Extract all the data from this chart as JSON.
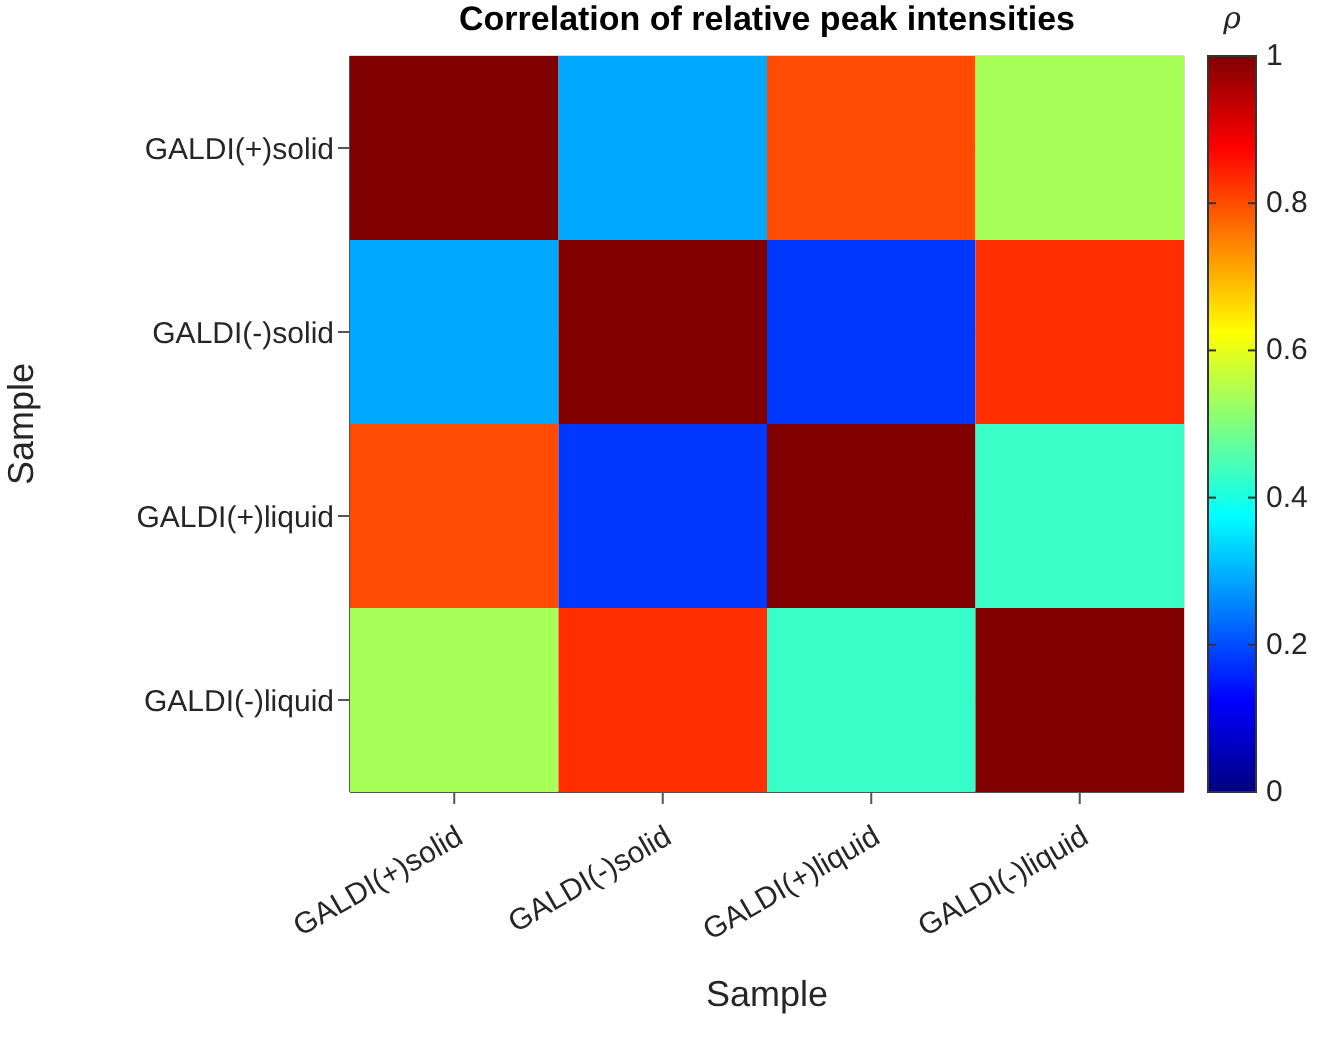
{
  "chart_data": {
    "type": "heatmap",
    "title": "Correlation of relative peak intensities",
    "xlabel": "Sample",
    "ylabel": "Sample",
    "clabel": "ρ",
    "categories": [
      "GALDI(+)solid",
      "GALDI(-)solid",
      "GALDI(+)liquid",
      "GALDI(-)liquid"
    ],
    "y_categories": [
      "GALDI(+)solid",
      "GALDI(-)solid",
      "GALDI(+)liquid",
      "GALDI(-)liquid"
    ],
    "cells": [
      [
        1,
        0.29,
        0.8,
        0.54
      ],
      [
        0.29,
        1,
        0.18,
        0.83
      ],
      [
        0.8,
        0.18,
        1,
        0.43
      ],
      [
        0.54,
        0.83,
        0.43,
        1
      ]
    ],
    "clim": [
      0,
      1
    ],
    "cticks": [
      0,
      0.2,
      0.4,
      0.6,
      0.8,
      1
    ],
    "grid": true
  }
}
